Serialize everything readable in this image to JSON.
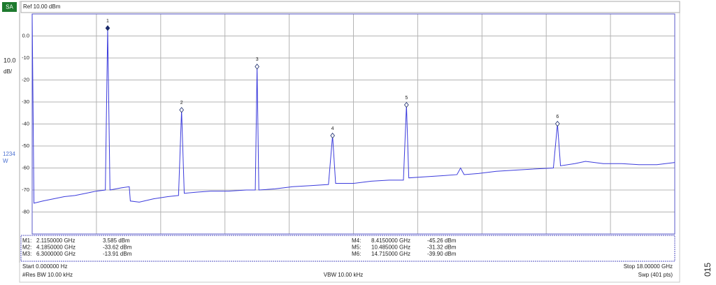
{
  "header": {
    "badge": "SA",
    "ref": "Ref 10.00 dBm"
  },
  "scale": {
    "per_div": "10.0",
    "unit": "dB/"
  },
  "trace_info": {
    "traces": "1234",
    "mode": "W"
  },
  "chart_data": {
    "type": "line",
    "color": "#3b3bdc",
    "grid": true,
    "xlim": [
      0,
      18
    ],
    "ylim": [
      -90,
      10
    ],
    "yticks": [
      {
        "value": 0,
        "label": "0.0"
      },
      -10,
      -20,
      -30,
      -40,
      -50,
      -60,
      -70,
      -80
    ],
    "x": [
      0,
      0.05,
      0.3,
      0.6,
      0.9,
      1.2,
      1.5,
      1.8,
      2.05,
      2.115,
      2.18,
      2.5,
      2.72,
      2.75,
      3.0,
      3.4,
      3.8,
      4.1,
      4.185,
      4.26,
      4.6,
      5.0,
      5.5,
      6.0,
      6.25,
      6.3,
      6.35,
      6.8,
      7.3,
      7.8,
      8.3,
      8.415,
      8.5,
      9.0,
      9.5,
      10.0,
      10.4,
      10.485,
      10.55,
      11.0,
      11.5,
      11.9,
      12.0,
      12.1,
      12.5,
      13.0,
      13.5,
      14.0,
      14.6,
      14.715,
      14.8,
      15.2,
      15.5,
      16.0,
      16.5,
      17.0,
      17.5,
      18.0
    ],
    "values": [
      10,
      -76,
      -75,
      -74,
      -73,
      -72.5,
      -71.5,
      -70.5,
      -70,
      3.585,
      -70,
      -69,
      -68.5,
      -75,
      -75.5,
      -74,
      -73,
      -72.5,
      -33.62,
      -71.5,
      -71,
      -70.5,
      -70.5,
      -70,
      -70,
      -13.91,
      -70,
      -69.5,
      -68.5,
      -68,
      -67.5,
      -45.26,
      -67,
      -67,
      -66,
      -65.5,
      -65.5,
      -31.32,
      -64.5,
      -64,
      -63.5,
      -63,
      -60,
      -63,
      -62.5,
      -61.5,
      -61,
      -60.5,
      -60,
      -39.9,
      -59,
      -58,
      -57,
      -58,
      -58,
      -58.5,
      -58.5,
      -57.5
    ],
    "markers": [
      {
        "label": "1",
        "x": 2.115,
        "y": 3.585
      },
      {
        "label": "2",
        "x": 4.185,
        "y": -33.62
      },
      {
        "label": "3",
        "x": 6.3,
        "y": -13.91
      },
      {
        "label": "4",
        "x": 8.415,
        "y": -45.26
      },
      {
        "label": "5",
        "x": 10.485,
        "y": -31.32
      },
      {
        "label": "6",
        "x": 14.715,
        "y": -39.9
      }
    ]
  },
  "marker_table": [
    [
      "M1:",
      "2.1150000 GHz",
      "3.585 dBm"
    ],
    [
      "M2:",
      "4.1850000 GHz",
      "-33.62 dBm"
    ],
    [
      "M3:",
      "6.3000000 GHz",
      "-13.91 dBm"
    ],
    [
      "M4:",
      "8.4150000 GHz",
      "-45.26 dBm"
    ],
    [
      "M5:",
      "10.485000 GHz",
      "-31.32 dBm"
    ],
    [
      "M6:",
      "14.715000 GHz",
      "-39.90 dBm"
    ]
  ],
  "footer": {
    "start": "Start 0.000000  Hz",
    "rbw": "#Res BW 10.00 kHz",
    "vbw": "VBW 10.00 kHz",
    "stop": "Stop 18.00000 GHz",
    "sweep": "Swp (401 pts)"
  },
  "figure_code": "015"
}
